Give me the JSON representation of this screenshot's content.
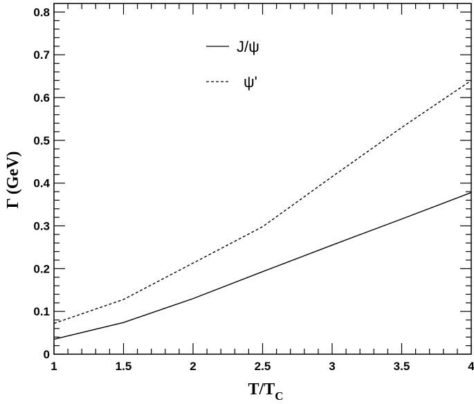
{
  "chart_data": {
    "type": "line",
    "xlabel_main": "T/T",
    "xlabel_sub": "C",
    "ylabel": "Γ (GeV)",
    "xlim": [
      1,
      4
    ],
    "ylim": [
      0,
      0.82
    ],
    "grid": false,
    "legend_position": "top-center",
    "x_ticks": [
      1,
      1.5,
      2,
      2.5,
      3,
      3.5,
      4
    ],
    "x_tick_labels": [
      "1",
      "1.5",
      "2",
      "2.5",
      "3",
      "3.5",
      "4"
    ],
    "y_ticks": [
      0,
      0.1,
      0.2,
      0.3,
      0.4,
      0.5,
      0.6,
      0.7,
      0.8
    ],
    "y_tick_labels": [
      "0",
      "0.1",
      "0.2",
      "0.3",
      "0.4",
      "0.5",
      "0.6",
      "0.7",
      "0.8"
    ],
    "series": [
      {
        "name": "J/ψ",
        "style": "solid",
        "x": [
          1,
          1.5,
          2,
          2.5,
          3,
          3.5,
          4
        ],
        "values": [
          0.035,
          0.074,
          0.13,
          0.193,
          0.255,
          0.316,
          0.378
        ]
      },
      {
        "name": "ψ'",
        "style": "dashed",
        "x": [
          1,
          1.5,
          2,
          2.5,
          3,
          3.5,
          4
        ],
        "values": [
          0.072,
          0.128,
          0.213,
          0.298,
          0.415,
          0.53,
          0.64
        ]
      }
    ]
  }
}
